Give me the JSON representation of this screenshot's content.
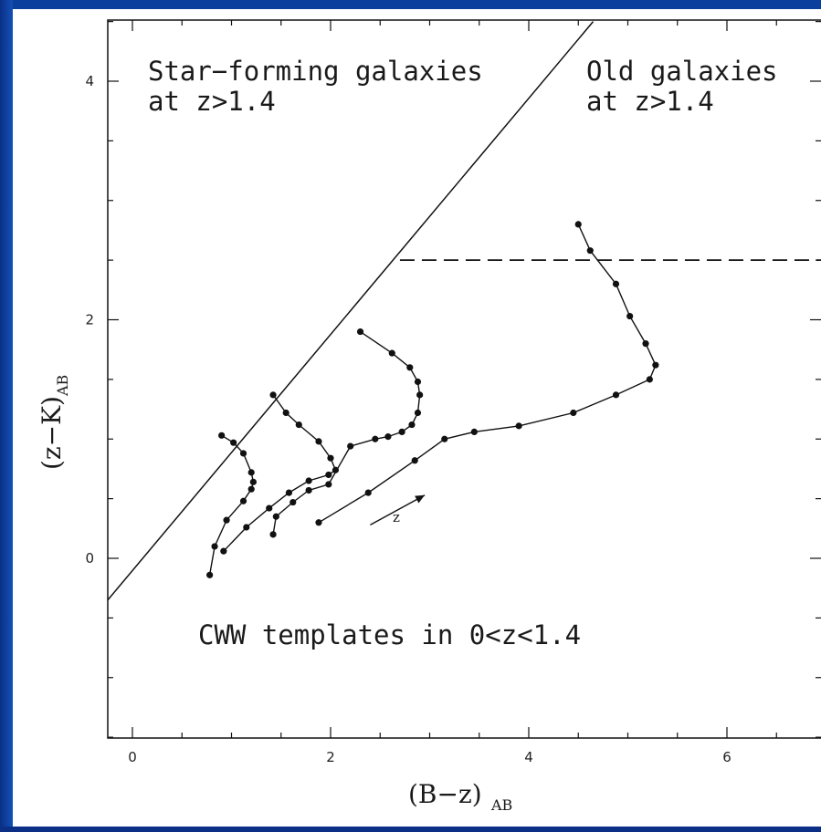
{
  "chart_data": {
    "type": "line",
    "xlabel": "(B−z)",
    "xlabel_sub": "AB",
    "ylabel": "(z−K)",
    "ylabel_sub": "AB",
    "xlim": [
      -0.3,
      7.0
    ],
    "ylim": [
      -1.5,
      4.5
    ],
    "x_ticks": [
      0,
      2,
      4,
      6
    ],
    "y_ticks": [
      0,
      2,
      4
    ],
    "grid": false,
    "annotations": [
      {
        "name": "starforming",
        "lines": [
          "Star−forming galaxies",
          "at z>1.4"
        ],
        "x": 0.2,
        "y": 4.05
      },
      {
        "name": "old",
        "lines": [
          "Old galaxies",
          "at z>1.4"
        ],
        "x": 4.6,
        "y": 4.05
      },
      {
        "name": "cww",
        "lines": [
          "CWW templates in 0<z<1.4"
        ],
        "x": 0.7,
        "y": -0.6
      }
    ],
    "arrow": {
      "label": "z",
      "from": [
        2.4,
        0.28
      ],
      "to": [
        2.95,
        0.53
      ]
    },
    "boundary_line": {
      "from": [
        -0.3,
        -0.4
      ],
      "to": [
        4.65,
        4.5
      ]
    },
    "dashed_line": {
      "from": [
        2.7,
        2.5
      ],
      "to": [
        7.0,
        2.5
      ]
    },
    "series": [
      {
        "points": [
          [
            0.78,
            -0.14
          ],
          [
            0.83,
            0.1
          ],
          [
            0.95,
            0.32
          ],
          [
            1.12,
            0.48
          ],
          [
            1.2,
            0.58
          ],
          [
            1.22,
            0.64
          ],
          [
            1.2,
            0.72
          ],
          [
            1.12,
            0.88
          ],
          [
            1.02,
            0.97
          ],
          [
            0.9,
            1.03
          ]
        ]
      },
      {
        "points": [
          [
            0.92,
            0.06
          ],
          [
            1.15,
            0.26
          ],
          [
            1.38,
            0.42
          ],
          [
            1.58,
            0.55
          ],
          [
            1.78,
            0.65
          ],
          [
            1.98,
            0.7
          ],
          [
            2.05,
            0.74
          ],
          [
            2.0,
            0.84
          ],
          [
            1.88,
            0.98
          ],
          [
            1.68,
            1.12
          ],
          [
            1.55,
            1.22
          ],
          [
            1.42,
            1.37
          ]
        ]
      },
      {
        "points": [
          [
            1.42,
            0.2
          ],
          [
            1.45,
            0.35
          ],
          [
            1.62,
            0.47
          ],
          [
            1.78,
            0.57
          ],
          [
            1.98,
            0.62
          ],
          [
            2.2,
            0.94
          ],
          [
            2.45,
            1.0
          ],
          [
            2.58,
            1.02
          ],
          [
            2.72,
            1.06
          ],
          [
            2.82,
            1.12
          ],
          [
            2.88,
            1.22
          ],
          [
            2.9,
            1.37
          ],
          [
            2.88,
            1.48
          ],
          [
            2.8,
            1.6
          ],
          [
            2.62,
            1.72
          ],
          [
            2.3,
            1.9
          ]
        ]
      },
      {
        "points": [
          [
            1.88,
            0.3
          ],
          [
            2.38,
            0.55
          ],
          [
            2.85,
            0.82
          ],
          [
            3.15,
            1.0
          ],
          [
            3.45,
            1.06
          ],
          [
            3.9,
            1.11
          ],
          [
            4.45,
            1.22
          ],
          [
            4.88,
            1.37
          ],
          [
            5.22,
            1.5
          ],
          [
            5.28,
            1.62
          ],
          [
            5.18,
            1.8
          ],
          [
            5.02,
            2.03
          ],
          [
            4.88,
            2.3
          ],
          [
            4.62,
            2.58
          ],
          [
            4.5,
            2.8
          ]
        ]
      }
    ]
  }
}
